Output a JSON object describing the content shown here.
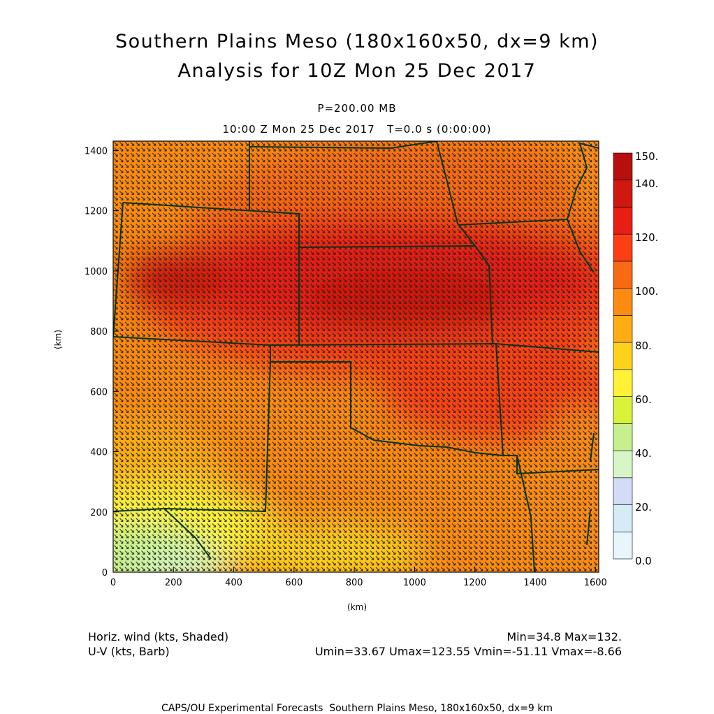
{
  "title_line1": "Southern Plains Meso (180x160x50, dx=9 km)",
  "title_line2": "Analysis for 10Z Mon 25 Dec 2017",
  "level": "P=200.00 MB",
  "time_line": "10:00 Z Mon 25 Dec 2017   T=0.0 s (0:00:00)",
  "x_axis": {
    "unit": "(km)",
    "ticks": [
      0,
      200,
      400,
      600,
      800,
      1000,
      1200,
      1400,
      1600
    ],
    "range": [
      0,
      1611
    ]
  },
  "y_axis": {
    "unit": "(km)",
    "ticks": [
      0,
      200,
      400,
      600,
      800,
      1000,
      1200,
      1400
    ],
    "range": [
      0,
      1431
    ]
  },
  "colorbar": {
    "labels": [
      "150.",
      "140.",
      "120.",
      "100.",
      "80.",
      "60.",
      "40.",
      "20.",
      "0.0"
    ],
    "colors": [
      "#e8f6fb",
      "#d5ecf7",
      "#d2dcf6",
      "#d6f6c8",
      "#c6f08e",
      "#d8f33a",
      "#fff236",
      "#ffd21a",
      "#ffad13",
      "#fc8a13",
      "#f86913",
      "#fb3f13",
      "#e81e13",
      "#cf1910",
      "#b70f0e"
    ]
  },
  "field_label": "Horiz. wind (kts, Shaded)",
  "barb_label": "U-V (kts, Barb)",
  "minmax": "Min=34.8 Max=132.",
  "uv_stats": "Umin=33.67 Umax=123.55 Vmin=-51.11 Vmax=-8.66",
  "footer": "CAPS/OU Experimental Forecasts  Southern Plains Meso, 180x160x50, dx=9 km",
  "map_colors": {
    "border": "#0a3319",
    "barb": "#1d2615"
  }
}
